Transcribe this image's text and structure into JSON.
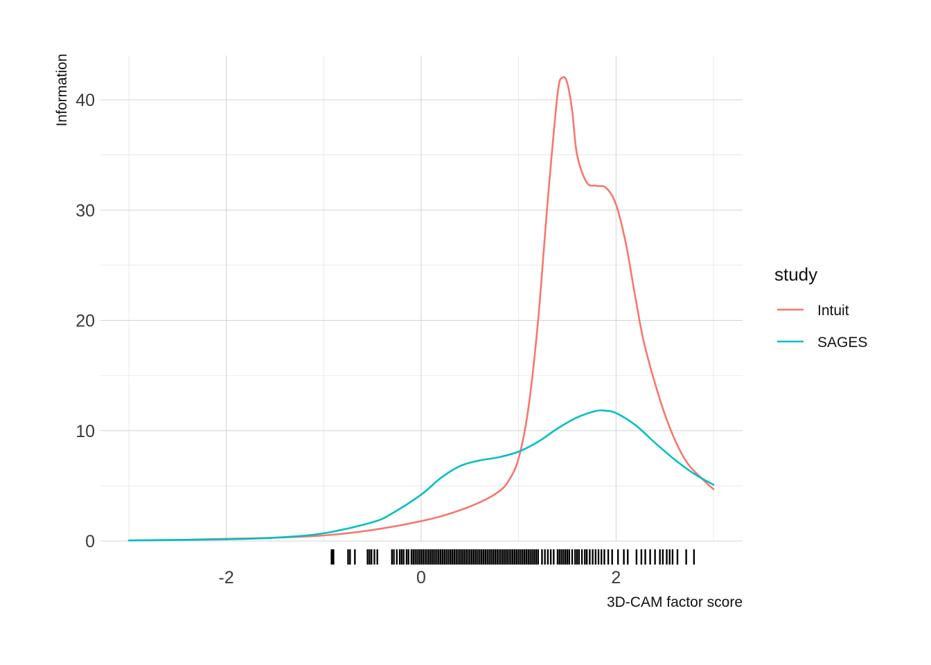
{
  "chart_data": {
    "type": "line",
    "xlabel": "3D-CAM factor score",
    "ylabel": "Information",
    "xlim": [
      -3,
      3
    ],
    "ylim": [
      0,
      44
    ],
    "x_ticks": [
      -2,
      0,
      2
    ],
    "x_tick_labels": [
      "-2",
      "0",
      "2"
    ],
    "y_ticks": [
      0,
      10,
      20,
      30,
      40
    ],
    "y_tick_labels": [
      "0",
      "10",
      "20",
      "30",
      "40"
    ],
    "grid": true,
    "legend": {
      "title": "study",
      "position": "right"
    },
    "series": [
      {
        "name": "Intuit",
        "color": "#F8766D",
        "x": [
          -3,
          -2.5,
          -2,
          -1.5,
          -1,
          -0.5,
          0,
          0.3,
          0.6,
          0.8,
          0.9,
          1.0,
          1.1,
          1.2,
          1.3,
          1.4,
          1.45,
          1.5,
          1.55,
          1.6,
          1.7,
          1.8,
          1.9,
          2.0,
          2.1,
          2.2,
          2.3,
          2.5,
          2.7,
          2.9,
          3.0
        ],
        "y": [
          0.05,
          0.1,
          0.2,
          0.3,
          0.5,
          1.0,
          1.8,
          2.5,
          3.5,
          4.5,
          5.5,
          7.5,
          12,
          20,
          31,
          40.5,
          42,
          41.5,
          39,
          35,
          32.5,
          32.2,
          32,
          30.5,
          27,
          22,
          17.5,
          11.5,
          7.5,
          5.5,
          4.7
        ]
      },
      {
        "name": "SAGES",
        "color": "#00BFC4",
        "x": [
          -3,
          -2.5,
          -2,
          -1.5,
          -1,
          -0.5,
          -0.3,
          0,
          0.2,
          0.4,
          0.6,
          0.8,
          1.0,
          1.2,
          1.4,
          1.6,
          1.8,
          1.9,
          2.0,
          2.2,
          2.4,
          2.6,
          2.8,
          3.0
        ],
        "y": [
          0.05,
          0.1,
          0.15,
          0.3,
          0.7,
          1.7,
          2.5,
          4.2,
          5.7,
          6.8,
          7.3,
          7.6,
          8.1,
          9.0,
          10.2,
          11.2,
          11.8,
          11.8,
          11.6,
          10.5,
          8.9,
          7.4,
          6.1,
          5.1
        ]
      }
    ],
    "rug_x": [
      -0.92,
      -0.91,
      -0.9,
      -0.75,
      -0.73,
      -0.68,
      -0.55,
      -0.53,
      -0.51,
      -0.48,
      -0.45,
      -0.3,
      -0.28,
      -0.25,
      -0.22,
      -0.2,
      -0.18,
      -0.15,
      -0.13,
      -0.1,
      -0.08,
      -0.06,
      -0.04,
      -0.02,
      0.0,
      0.02,
      0.04,
      0.06,
      0.08,
      0.1,
      0.12,
      0.14,
      0.16,
      0.18,
      0.2,
      0.22,
      0.24,
      0.26,
      0.28,
      0.3,
      0.32,
      0.34,
      0.36,
      0.38,
      0.4,
      0.42,
      0.44,
      0.46,
      0.48,
      0.5,
      0.52,
      0.54,
      0.56,
      0.58,
      0.6,
      0.62,
      0.64,
      0.66,
      0.68,
      0.7,
      0.72,
      0.74,
      0.76,
      0.78,
      0.8,
      0.82,
      0.84,
      0.86,
      0.88,
      0.9,
      0.92,
      0.94,
      0.96,
      0.98,
      1.0,
      1.02,
      1.04,
      1.06,
      1.08,
      1.1,
      1.12,
      1.14,
      1.16,
      1.18,
      1.2,
      1.24,
      1.27,
      1.3,
      1.33,
      1.36,
      1.4,
      1.42,
      1.44,
      1.46,
      1.48,
      1.5,
      1.52,
      1.55,
      1.58,
      1.6,
      1.62,
      1.65,
      1.68,
      1.7,
      1.73,
      1.76,
      1.79,
      1.82,
      1.85,
      1.88,
      1.92,
      1.96,
      2.02,
      2.08,
      2.12,
      2.21,
      2.26,
      2.3,
      2.35,
      2.4,
      2.45,
      2.48,
      2.52,
      2.55,
      2.58,
      2.63,
      2.72,
      2.8
    ]
  }
}
